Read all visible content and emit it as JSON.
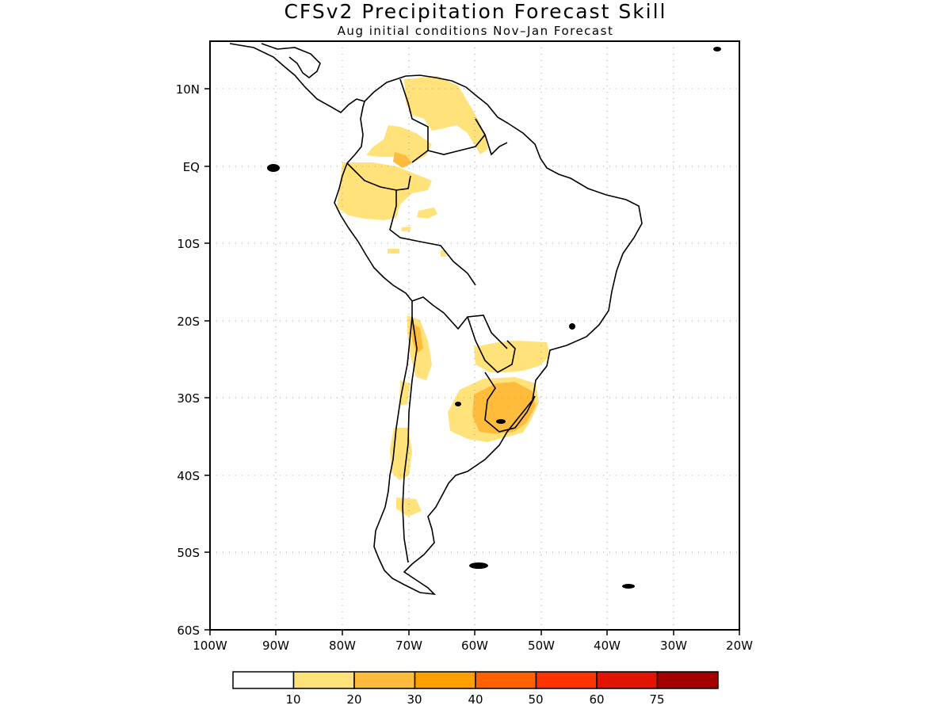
{
  "title": "CFSv2 Precipitation Forecast Skill",
  "subtitle": "Aug initial conditions   Nov–Jan Forecast",
  "map": {
    "lat_labels": [
      {
        "text": "10N",
        "lat": 10
      },
      {
        "text": "EQ",
        "lat": 0
      },
      {
        "text": "10S",
        "lat": -10
      },
      {
        "text": "20S",
        "lat": -20
      },
      {
        "text": "30S",
        "lat": -30
      },
      {
        "text": "40S",
        "lat": -40
      },
      {
        "text": "50S",
        "lat": -50
      },
      {
        "text": "60S",
        "lat": -60
      }
    ],
    "lon_labels": [
      {
        "text": "100W",
        "lon": -100
      },
      {
        "text": "90W",
        "lon": -90
      },
      {
        "text": "80W",
        "lon": -80
      },
      {
        "text": "70W",
        "lon": -70
      },
      {
        "text": "60W",
        "lon": -60
      },
      {
        "text": "50W",
        "lon": -50
      },
      {
        "text": "40W",
        "lon": -40
      },
      {
        "text": "30W",
        "lon": -30
      },
      {
        "text": "20W",
        "lon": -20
      }
    ],
    "gridlines": "dotted"
  },
  "colorbar": {
    "levels": [
      "10",
      "20",
      "30",
      "40",
      "50",
      "60",
      "75"
    ],
    "colors": [
      "#ffffff",
      "#ffe27a",
      "#ffbb3c",
      "#ffa000",
      "#ff6000",
      "#ff3200",
      "#e11400",
      "#a50000"
    ]
  }
}
